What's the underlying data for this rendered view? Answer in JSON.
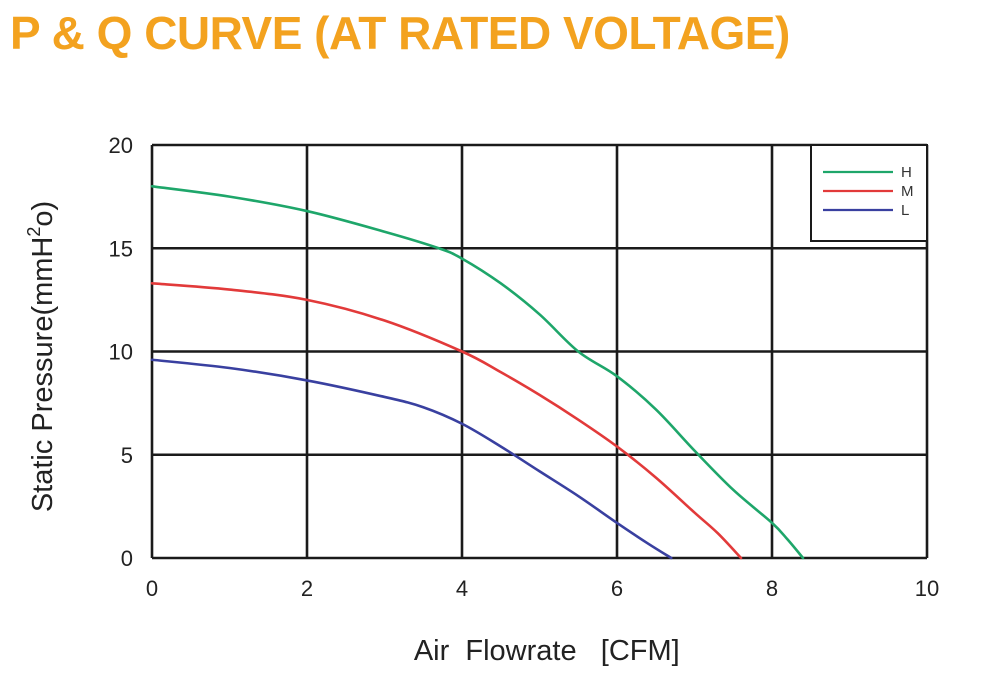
{
  "chart_data": {
    "type": "line",
    "title": "P & Q CURVE (AT RATED VOLTAGE)",
    "xlabel": "Air  Flowrate   [CFM]",
    "ylabel_main": "Static Pressure(mmH",
    "ylabel_sup": "2",
    "ylabel_tail": "o)",
    "xlim": [
      0,
      10
    ],
    "ylim": [
      0,
      20
    ],
    "xticks": [
      0,
      2,
      4,
      6,
      8,
      10
    ],
    "yticks": [
      0,
      5,
      10,
      15,
      20
    ],
    "grid": true,
    "legend_position": "top-right",
    "series": [
      {
        "name": "H",
        "color": "#1ea66a",
        "x": [
          0,
          1,
          2,
          3,
          3.7,
          4,
          4.5,
          5,
          5.5,
          6,
          6.5,
          7,
          7.5,
          8,
          8.2,
          8.4
        ],
        "y": [
          18.0,
          17.5,
          16.8,
          15.8,
          15.0,
          14.5,
          13.3,
          11.8,
          10.0,
          8.8,
          7.2,
          5.2,
          3.3,
          1.7,
          0.9,
          0
        ]
      },
      {
        "name": "M",
        "color": "#e23a3a",
        "x": [
          0,
          1,
          2,
          3,
          4,
          4.5,
          5,
          5.5,
          6,
          6.5,
          7,
          7.3,
          7.6
        ],
        "y": [
          13.3,
          13.0,
          12.5,
          11.5,
          10.0,
          9.0,
          7.9,
          6.7,
          5.4,
          3.9,
          2.2,
          1.2,
          0
        ]
      },
      {
        "name": "L",
        "color": "#3940a0",
        "x": [
          0,
          1,
          2,
          3,
          3.5,
          4,
          4.5,
          5,
          5.5,
          6,
          6.4,
          6.7
        ],
        "y": [
          9.6,
          9.2,
          8.6,
          7.8,
          7.3,
          6.5,
          5.4,
          4.2,
          3.0,
          1.7,
          0.7,
          0
        ]
      }
    ]
  }
}
